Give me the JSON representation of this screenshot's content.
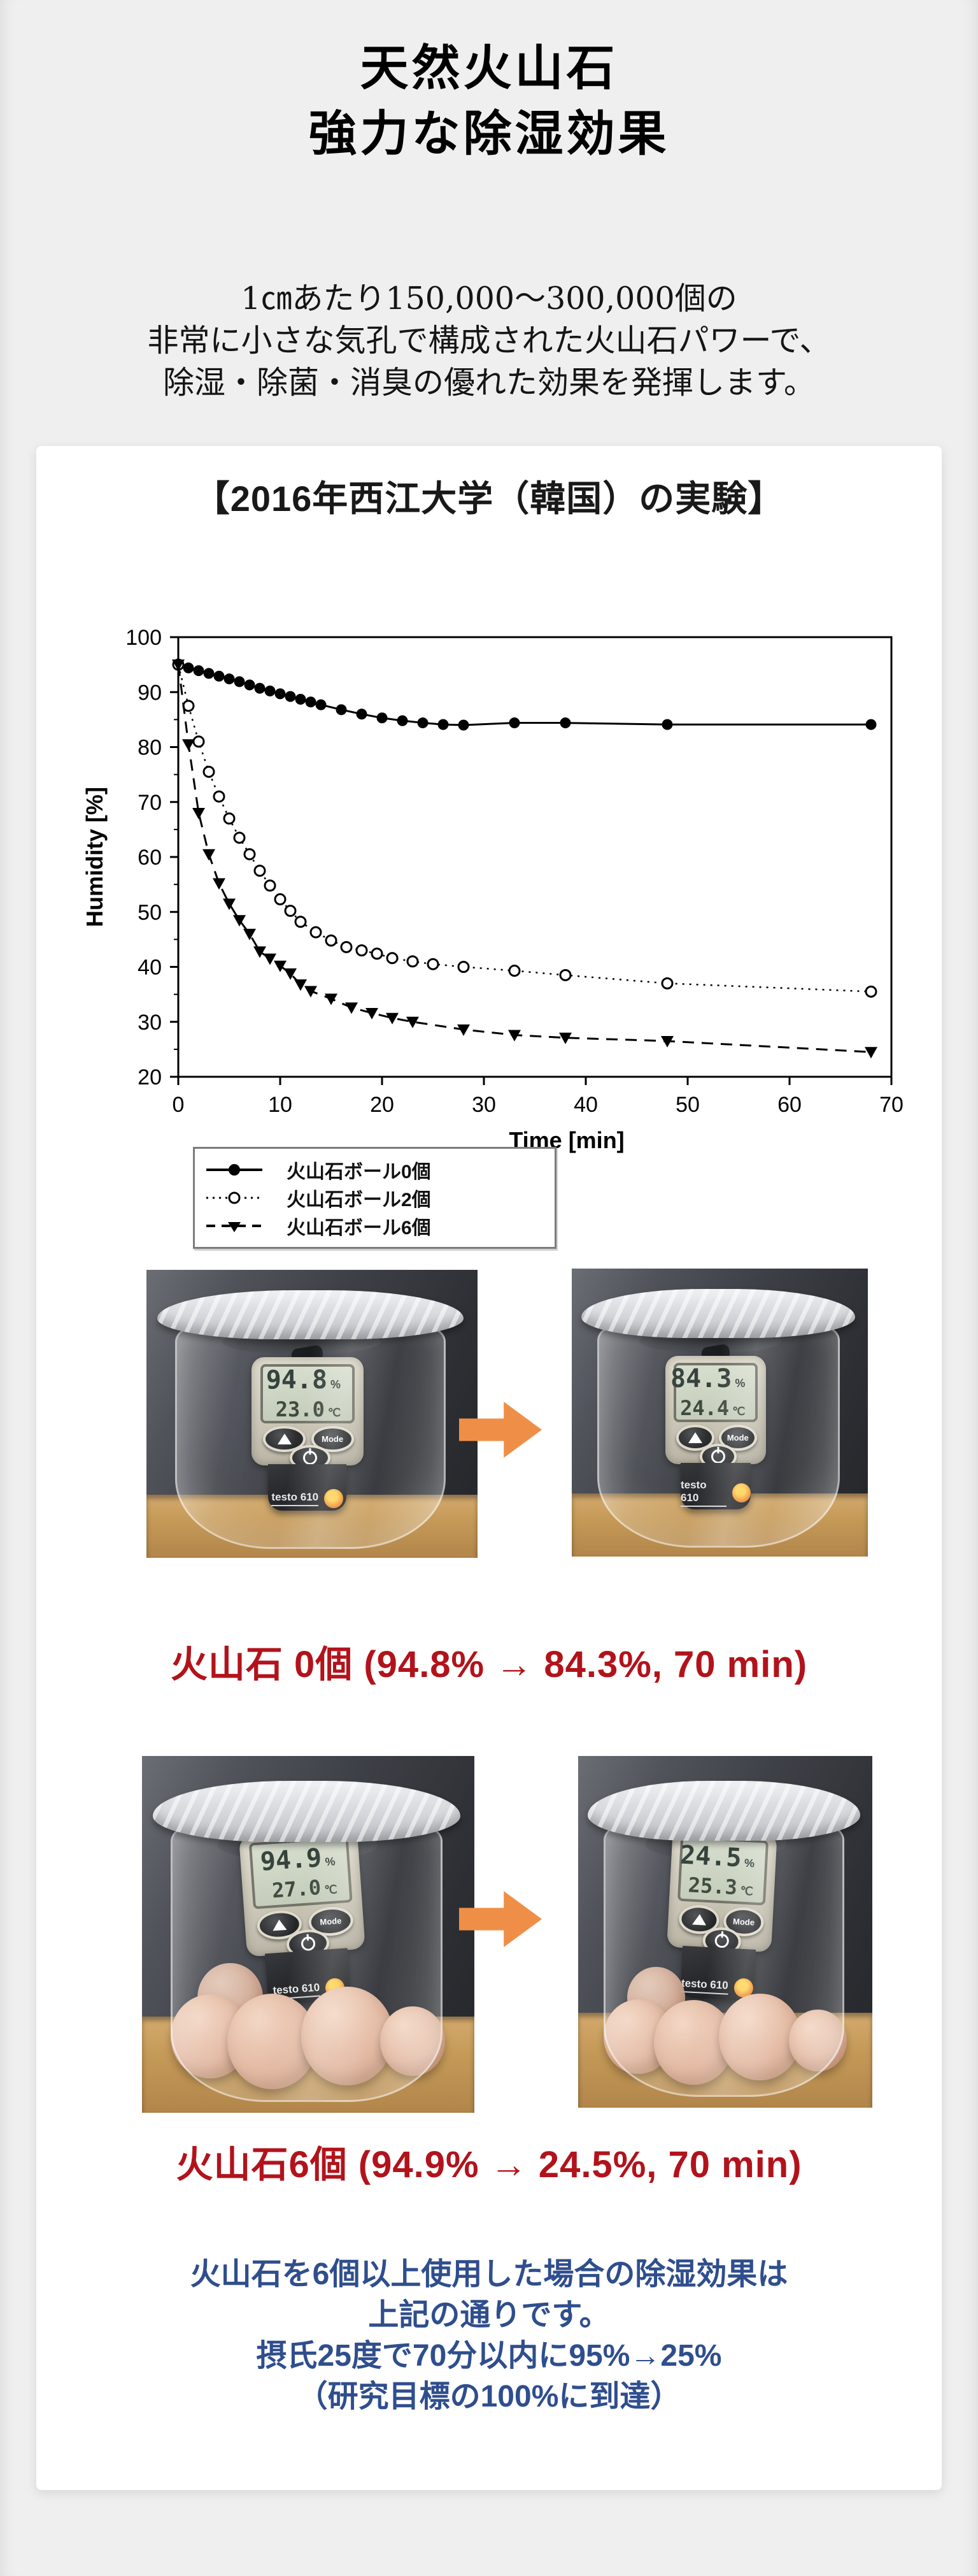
{
  "header": {
    "title_line1": "天然火山石",
    "title_line2": "強力な除湿効果"
  },
  "intro": {
    "line1": "1㎝あたり150,000～300,000個の",
    "line2": "非常に小さな気孔で構成された火山石パワーで、",
    "line3": "除湿・除菌・消臭の優れた効果を発揮します。"
  },
  "experiment_card": {
    "title": "【2016年西江大学（韓国）の実験】"
  },
  "chart_data": {
    "type": "line",
    "title": "",
    "xlabel": "Time [min]",
    "ylabel": "Humidity [%]",
    "xlim": [
      0,
      70
    ],
    "ylim": [
      20,
      100
    ],
    "xticks": [
      0,
      10,
      20,
      30,
      40,
      50,
      60,
      70
    ],
    "yticks": [
      20,
      30,
      40,
      50,
      60,
      70,
      80,
      90,
      100
    ],
    "yticks_minor": [
      25,
      35,
      45,
      55,
      65,
      75,
      85,
      95
    ],
    "grid": false,
    "legend_position": "below-left",
    "series": [
      {
        "name": "火山石ボール0個",
        "marker": "filled-circle",
        "line": "solid",
        "x": [
          0,
          1,
          2,
          3,
          4,
          5,
          6,
          7,
          8,
          9,
          10,
          11,
          12,
          13,
          14,
          16,
          18,
          20,
          22,
          24,
          26,
          28,
          33,
          38,
          48,
          68
        ],
        "y": [
          95,
          94.4,
          93.9,
          93.4,
          92.9,
          92.4,
          91.9,
          91.3,
          90.7,
          90.2,
          89.7,
          89.2,
          88.7,
          88.2,
          87.7,
          86.8,
          86.0,
          85.3,
          84.8,
          84.4,
          84.1,
          84.0,
          84.4,
          84.4,
          84.1,
          84.1
        ]
      },
      {
        "name": "火山石ボール2個",
        "marker": "open-circle",
        "line": "dotted",
        "x": [
          0,
          1,
          2,
          3,
          4,
          5,
          6,
          7,
          8,
          9,
          10,
          11,
          12,
          13.5,
          15,
          16.5,
          18,
          19.5,
          21,
          23,
          25,
          28,
          33,
          38,
          48,
          68
        ],
        "y": [
          95,
          87.5,
          81,
          75.5,
          71,
          67,
          63.5,
          60.5,
          57.5,
          54.8,
          52.3,
          50.2,
          48.2,
          46.3,
          44.8,
          43.6,
          43,
          42.4,
          41.6,
          41,
          40.5,
          40,
          39.3,
          38.5,
          37,
          35.5
        ]
      },
      {
        "name": "火山石ボール6個",
        "marker": "filled-triangle",
        "line": "dashed",
        "x": [
          0,
          1,
          2,
          3,
          4,
          5,
          6,
          7,
          8,
          9,
          10,
          11,
          12,
          13,
          15,
          17,
          19,
          21,
          23,
          28,
          33,
          38,
          48,
          68
        ],
        "y": [
          95,
          80.5,
          68,
          60.5,
          55.2,
          51.5,
          48.5,
          46,
          42.8,
          41.5,
          40.2,
          38.8,
          36.8,
          35.6,
          34.2,
          32.6,
          31.6,
          30.7,
          30,
          28.6,
          27.6,
          27.1,
          26.5,
          24.5
        ]
      }
    ]
  },
  "comparisons": [
    {
      "caption": "火山石 0個 (94.8% → 84.3%, 70 min)",
      "before": {
        "humidity": "94.8",
        "temperature": "23.0"
      },
      "after": {
        "humidity": "84.3",
        "temperature": "24.4"
      },
      "stones": false
    },
    {
      "caption": "火山石6個 (94.9% → 24.5%, 70 min)",
      "before": {
        "humidity": "94.9",
        "temperature": "27.0"
      },
      "after": {
        "humidity": "24.5",
        "temperature": "25.3"
      },
      "stones": true
    }
  ],
  "meter": {
    "brand": "testo 610",
    "mode_label": "Mode",
    "humidity_unit": "%",
    "temperature_unit": "℃"
  },
  "conclusion": {
    "line1": "火山石を6個以上使用した場合の除湿効果は",
    "line2": "上記の通りです。",
    "line3": "摂氏25度で70分以内に95%→25%",
    "line4": "（研究目標の100%に到達）"
  },
  "colors": {
    "page_bg": "#efefef",
    "card_bg": "#ffffff",
    "title_blue": "#7e93b7",
    "caption_red": "#b2131b",
    "conclusion_blue": "#2f4e8d",
    "arrow_orange": "#ef8f47",
    "chart_ink": "#000000"
  }
}
